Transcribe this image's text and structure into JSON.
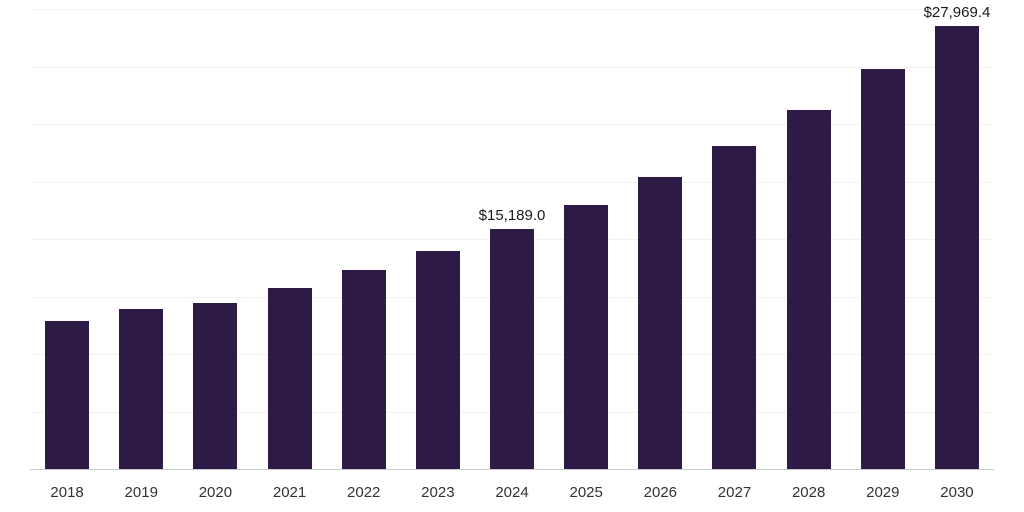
{
  "chart_data": {
    "type": "bar",
    "title": "",
    "categories": [
      "2018",
      "2019",
      "2020",
      "2021",
      "2022",
      "2023",
      "2024",
      "2025",
      "2026",
      "2027",
      "2028",
      "2029",
      "2030"
    ],
    "values": [
      9400,
      10150,
      10550,
      11450,
      12600,
      13800,
      15189.0,
      16700,
      18450,
      20450,
      22700,
      25250,
      27969.4
    ],
    "data_labels": [
      "",
      "",
      "",
      "",
      "",
      "",
      "$15,189.0",
      "",
      "",
      "",
      "",
      "",
      "$27,969.4"
    ],
    "xlabel": "",
    "ylabel": "",
    "ylim": [
      0,
      29000
    ],
    "grid": "horizontal",
    "grid_divisions": 8,
    "legend": "none",
    "bar_color": "#2E1A47",
    "axis_line_color": "#c9c9c9",
    "gridline_color": "#f2f2f2",
    "tick_label_color": "#333333",
    "data_label_color": "#1a1a1a"
  }
}
